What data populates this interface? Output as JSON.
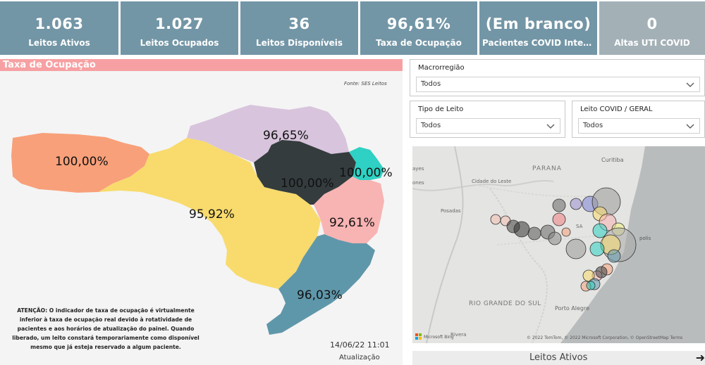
{
  "kpis": [
    {
      "value": "1.063",
      "label": "Leitos Ativos"
    },
    {
      "value": "1.027",
      "label": "Leitos Ocupados"
    },
    {
      "value": "36",
      "label": "Leitos Disponíveis"
    },
    {
      "value": "96,61%",
      "label": "Taxa de Ocupação"
    },
    {
      "value": "(Em branco)",
      "label": "Pacientes COVID Internados"
    },
    {
      "value": "0",
      "label": "Altas UTI COVID"
    }
  ],
  "occupancy_panel": {
    "title": "Taxa de Ocupação",
    "source": "Fonte: SES Leitos",
    "regions": [
      {
        "label": "100,00%",
        "color": "#f8a07a"
      },
      {
        "label": "96,65%",
        "color": "#d8c4dc"
      },
      {
        "label": "100,00%",
        "color": "#343c3e"
      },
      {
        "label": "100,00%",
        "color": "#2ed1c3"
      },
      {
        "label": "95,92%",
        "color": "#f8db6c"
      },
      {
        "label": "92,61%",
        "color": "#f8b3b3"
      },
      {
        "label": "96,03%",
        "color": "#5f97aa"
      }
    ],
    "attention": "ATENÇÃO: O indicador de taxa de ocupação é virtualmente inferior à taxa de ocupação real devido à rotatividade de pacientes e aos horários de atualização do painel. Quando liberado, um leito constará temporariamente como disponível mesmo que já esteja reservado a algum paciente.",
    "update_date": "14/06/22 11:01",
    "update_label": "Atualização"
  },
  "filters": {
    "macro": {
      "title": "Macrorregião",
      "value": "Todos"
    },
    "tipo": {
      "title": "Tipo de Leito",
      "value": "Todos"
    },
    "covid": {
      "title": "Leito COVID / GERAL",
      "value": "Todos"
    }
  },
  "map": {
    "labels": {
      "parana": "PARANA",
      "curitiba": "Curitiba",
      "cidade_leste": "Cidade do Leste",
      "posadas": "Posadas",
      "rio_grande": "RIO GRANDE DO SUL",
      "porto_alegre": "Porto Alegre",
      "rivera": "Rivera",
      "florianopolis_partial": "polis",
      "sc_partial": "SA",
      "ayes_partial": "ayes",
      "ones_partial": "ones"
    },
    "credit": "© 2022 TomTom, © 2022 Microsoft Corporation, © OpenStreetMap  Terms",
    "brand": "Microsoft Bing",
    "footer": "Leitos Ativos"
  },
  "colors": {
    "kpi": "#7396a6",
    "kpi_gray": "#a3b1b7",
    "title_bar": "#f7a0a3"
  }
}
